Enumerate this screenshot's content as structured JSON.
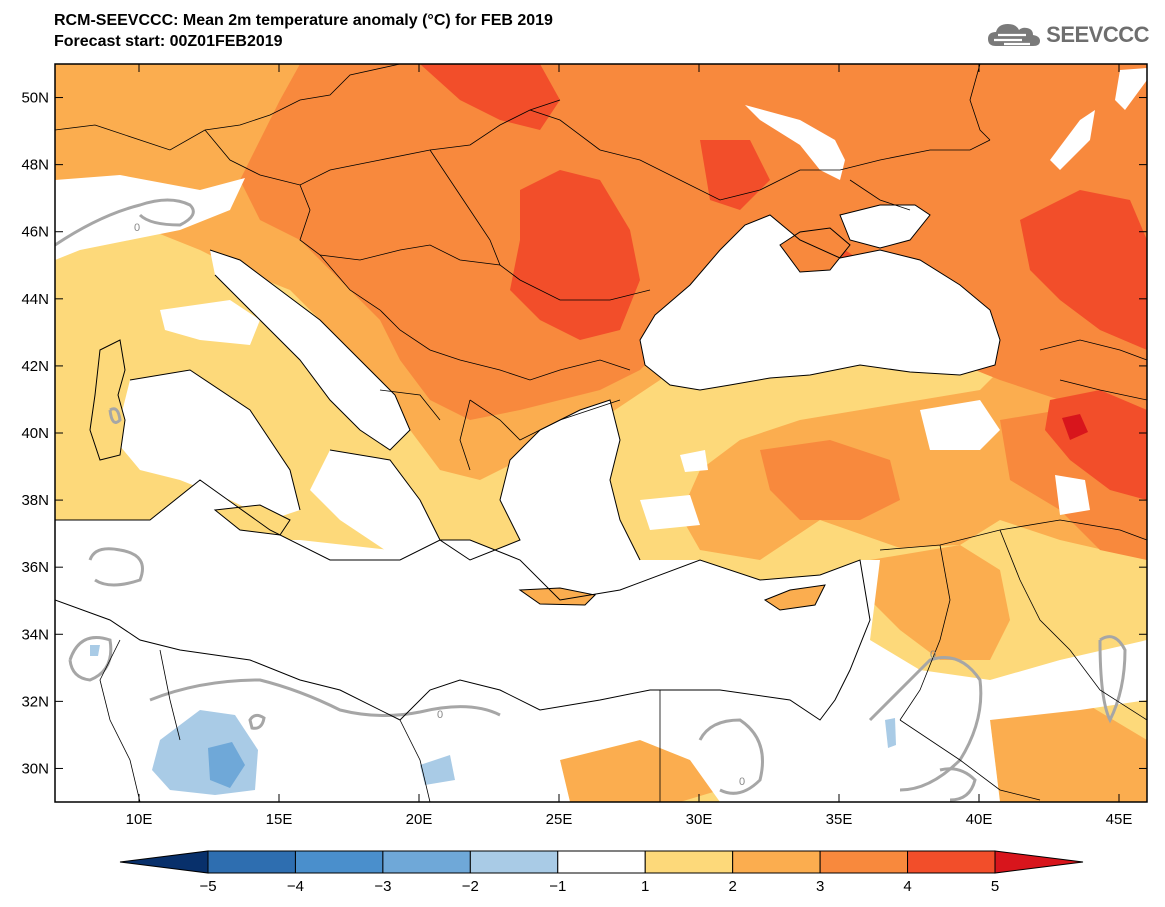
{
  "title": "RCM-SEEVCCC: Mean 2m temperature anomaly (°C) for FEB 2019",
  "subtitle": "Forecast start: 00Z01FEB2019",
  "logo_text": "SEEVCCC",
  "logo_icon": "cloud-icon",
  "map": {
    "lon_range": [
      7,
      46
    ],
    "lat_range": [
      29,
      51
    ],
    "lat_ticks": [
      "50N",
      "48N",
      "46N",
      "44N",
      "42N",
      "40N",
      "38N",
      "36N",
      "34N",
      "32N",
      "30N"
    ],
    "lon_ticks": [
      "10E",
      "15E",
      "20E",
      "25E",
      "30E",
      "35E",
      "40E",
      "45E"
    ],
    "contour_zero_label": "0"
  },
  "colorbar": {
    "labels": [
      "-5",
      "-4",
      "-3",
      "-2",
      "-1",
      "1",
      "2",
      "3",
      "4",
      "5"
    ],
    "colors": [
      "#08306b",
      "#2e6eb0",
      "#4a8fcc",
      "#6fa8d8",
      "#a9cbe6",
      "#ffffff",
      "#fdd97a",
      "#fbad4f",
      "#f8893d",
      "#f24e2a",
      "#d8151c"
    ]
  }
}
